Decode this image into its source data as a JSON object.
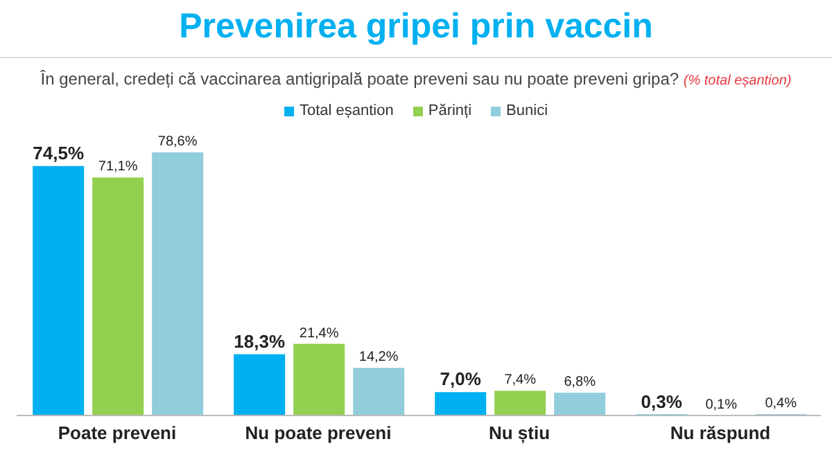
{
  "chart_data": {
    "type": "bar",
    "title": "Prevenirea gripei prin vaccin",
    "subtitle": "În general, credeți că vaccinarea antigripală poate preveni sau nu poate preveni gripa?",
    "annotations": [
      "(% total eșantion)"
    ],
    "categories": [
      "Poate preveni",
      "Nu poate preveni",
      "Nu știu",
      "Nu răspund"
    ],
    "series": [
      {
        "name": "Total eșantion",
        "color": "#00b0f0",
        "values": [
          74.5,
          18.3,
          7.0,
          0.3
        ],
        "value_labels": [
          "74,5%",
          "18,3%",
          "7,0%",
          "0,3%"
        ]
      },
      {
        "name": "Părinți",
        "color": "#92d050",
        "values": [
          71.1,
          21.4,
          7.4,
          0.1
        ],
        "value_labels": [
          "71,1%",
          "21,4%",
          "7,4%",
          "0,1%"
        ]
      },
      {
        "name": "Bunici",
        "color": "#92cddc",
        "values": [
          78.6,
          14.2,
          6.8,
          0.4
        ],
        "value_labels": [
          "78,6%",
          "14,2%",
          "6,8%",
          "0,4%"
        ]
      }
    ],
    "legend": "top"
  }
}
